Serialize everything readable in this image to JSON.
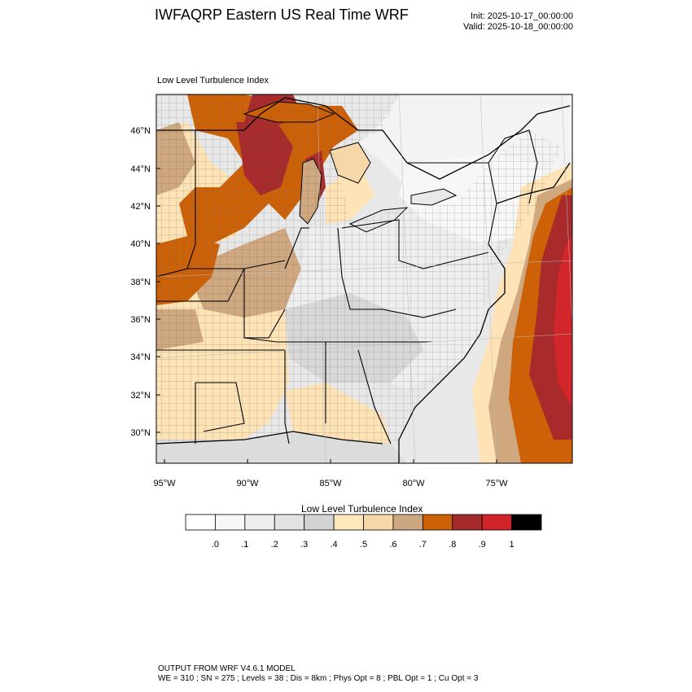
{
  "header": {
    "title": "IWFAQRP Eastern US Real Time WRF",
    "init": "Init: 2025-10-17_00:00:00",
    "valid": "Valid: 2025-10-18_00:00:00"
  },
  "panel": {
    "field_label": "Low Level Turbulence Index"
  },
  "map": {
    "lat_labels": [
      "46°N",
      "44°N",
      "42°N",
      "40°N",
      "38°N",
      "36°N",
      "34°N",
      "32°N",
      "30°N"
    ],
    "lon_labels": [
      "95°W",
      "90°W",
      "85°W",
      "80°W",
      "75°W"
    ],
    "colors": {
      "ocean_low": "#e4e4e4",
      "water_gray": "#dcdcdc",
      "light_orange": "#fde3b6",
      "tan": "#cfa880",
      "orange": "#cc6107",
      "dark_red": "#a82a2a",
      "red": "#d1262b"
    }
  },
  "colorbar": {
    "title": "Low Level Turbulence Index",
    "tick_labels": [
      ".0",
      ".1",
      ".2",
      ".3",
      ".4",
      ".5",
      ".6",
      ".7",
      ".8",
      ".9",
      "1"
    ],
    "colors": [
      "#ffffff",
      "#f7f7f7",
      "#eeeeee",
      "#e2e2e2",
      "#d3d3d3",
      "#fde7bb",
      "#f6d8a8",
      "#cba882",
      "#cc6107",
      "#a52a2a",
      "#d1232a",
      "#000000"
    ]
  },
  "footer": {
    "line1": "OUTPUT FROM WRF V4.6.1 MODEL",
    "line2": "WE = 310 ; SN = 275 ; Levels = 38 ; Dis = 8km ; Phys Opt = 8 ; PBL Opt = 1 ; Cu Opt = 3"
  }
}
